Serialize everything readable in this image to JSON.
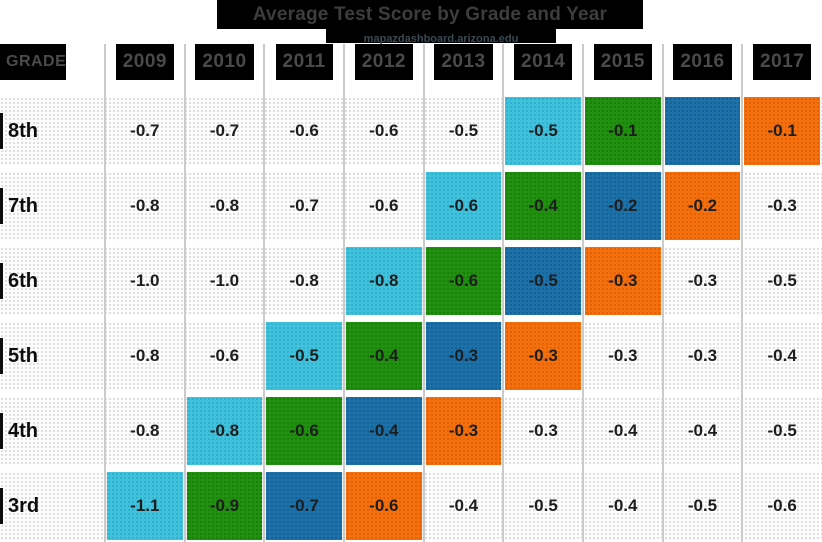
{
  "chart_data": {
    "type": "heatmap",
    "title": "Average Test Score by Grade and Year",
    "subtitle": "mapazdashboard.arizona.edu",
    "row_header": "GRADE",
    "columns": [
      "2009",
      "2010",
      "2011",
      "2012",
      "2013",
      "2014",
      "2015",
      "2016",
      "2017"
    ],
    "rows": [
      {
        "label": "8th",
        "values": [
          "-0.7",
          "-0.7",
          "-0.6",
          "-0.6",
          "-0.5",
          "-0.5",
          "-0.1",
          "",
          "-0.1"
        ],
        "colors": [
          "none",
          "none",
          "none",
          "none",
          "none",
          "cyan",
          "green",
          "blue",
          "orange"
        ]
      },
      {
        "label": "7th",
        "values": [
          "-0.8",
          "-0.8",
          "-0.7",
          "-0.6",
          "-0.6",
          "-0.4",
          "-0.2",
          "-0.2",
          "-0.3"
        ],
        "colors": [
          "none",
          "none",
          "none",
          "none",
          "cyan",
          "green",
          "blue",
          "orange",
          "none"
        ]
      },
      {
        "label": "6th",
        "values": [
          "-1.0",
          "-1.0",
          "-0.8",
          "-0.8",
          "-0.6",
          "-0.5",
          "-0.3",
          "-0.3",
          "-0.5"
        ],
        "colors": [
          "none",
          "none",
          "none",
          "cyan",
          "green",
          "blue",
          "orange",
          "none",
          "none"
        ]
      },
      {
        "label": "5th",
        "values": [
          "-0.8",
          "-0.6",
          "-0.5",
          "-0.4",
          "-0.3",
          "-0.3",
          "-0.3",
          "-0.3",
          "-0.4"
        ],
        "colors": [
          "none",
          "none",
          "cyan",
          "green",
          "blue",
          "orange",
          "none",
          "none",
          "none"
        ]
      },
      {
        "label": "4th",
        "values": [
          "-0.8",
          "-0.8",
          "-0.6",
          "-0.4",
          "-0.3",
          "-0.3",
          "-0.4",
          "-0.4",
          "-0.5"
        ],
        "colors": [
          "none",
          "cyan",
          "green",
          "blue",
          "orange",
          "none",
          "none",
          "none",
          "none"
        ]
      },
      {
        "label": "3rd",
        "values": [
          "-1.1",
          "-0.9",
          "-0.7",
          "-0.6",
          "-0.4",
          "-0.5",
          "-0.4",
          "-0.5",
          "-0.6"
        ],
        "colors": [
          "cyan",
          "green",
          "blue",
          "orange",
          "none",
          "none",
          "none",
          "none",
          "none"
        ]
      }
    ],
    "palette": {
      "cyan": {
        "base": "#41c1db",
        "dot": "#2aafca"
      },
      "green": {
        "base": "#218f10",
        "dot": "#177d06"
      },
      "blue": {
        "base": "#1d71a9",
        "dot": "#145f93"
      },
      "orange": {
        "base": "#f4700e",
        "dot": "#df6002"
      },
      "plain_bg": "#fdfdfd",
      "plain_dot": "#d7d7d7",
      "header_bg": "#000000",
      "header_text": "#4a4a4a",
      "grid_line": "#cbcbcb",
      "value_text": "#1d1d1d"
    },
    "legend_position": "none",
    "grid": "on"
  }
}
